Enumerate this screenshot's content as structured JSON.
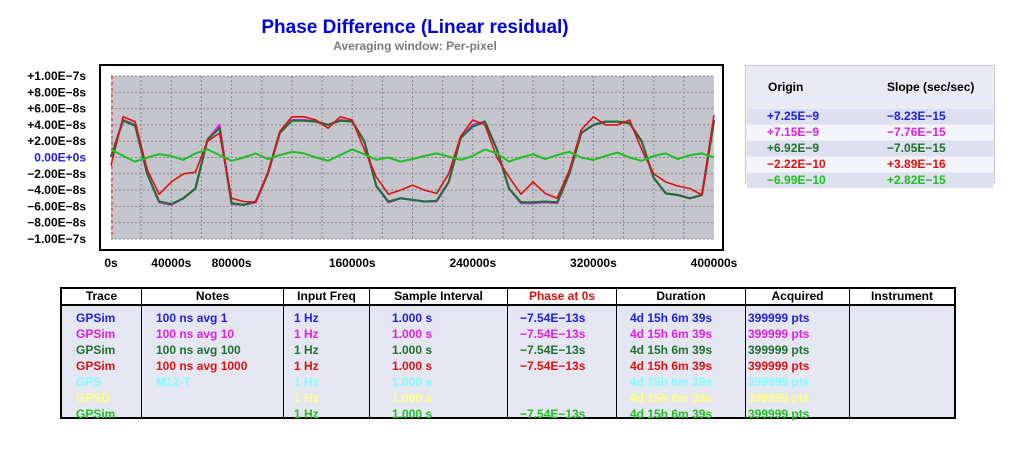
{
  "header": {
    "title": "Phase Difference (Linear residual)",
    "subtitle": "Averaging window: Per-pixel"
  },
  "chart_data": {
    "type": "line",
    "title": "Phase Difference (Linear residual)",
    "subtitle": "Averaging window: Per-pixel",
    "ylim": [
      -1e-07,
      1e-07
    ],
    "xlim": [
      0,
      400000
    ],
    "y_ticks": [
      "+1.00E−7s",
      "+8.00E−8s",
      "+6.00E−8s",
      "+4.00E−8s",
      "+2.00E−8s",
      "0.00E+0s",
      "−2.00E−8s",
      "−4.00E−8s",
      "−6.00E−8s",
      "−8.00E−8s",
      "−1.00E−7s"
    ],
    "x_ticks": [
      {
        "v": 0,
        "label": "0s"
      },
      {
        "v": 40000,
        "label": "40000s"
      },
      {
        "v": 80000,
        "label": "80000s"
      },
      {
        "v": 160000,
        "label": "160000s"
      },
      {
        "v": 240000,
        "label": "240000s"
      },
      {
        "v": 320000,
        "label": "320000s"
      },
      {
        "v": 400000,
        "label": "400000s"
      }
    ],
    "grid": true,
    "x": [
      0,
      8000,
      16000,
      24000,
      32000,
      40000,
      48000,
      56000,
      64000,
      72000,
      80000,
      88000,
      96000,
      104000,
      112000,
      120000,
      128000,
      136000,
      144000,
      152000,
      160000,
      168000,
      176000,
      184000,
      192000,
      200000,
      208000,
      216000,
      224000,
      232000,
      240000,
      248000,
      256000,
      264000,
      272000,
      280000,
      288000,
      296000,
      304000,
      312000,
      320000,
      328000,
      336000,
      344000,
      352000,
      360000,
      368000,
      376000,
      384000,
      392000,
      400000
    ],
    "series": [
      {
        "name": "GPSim 100 ns avg 1",
        "color": "#2020e0",
        "values": [
          1e-09,
          4.6e-08,
          4e-08,
          -2e-08,
          -5.5e-08,
          -5.8e-08,
          -5e-08,
          -3.8e-08,
          2.2e-08,
          3.8e-08,
          -5.7e-08,
          -5.8e-08,
          -5.5e-08,
          -2e-08,
          3e-08,
          4.6e-08,
          4.6e-08,
          4.4e-08,
          4e-08,
          4.6e-08,
          4.4e-08,
          2e-08,
          -3.5e-08,
          -5.5e-08,
          -5e-08,
          -5.2e-08,
          -5.4e-08,
          -5.4e-08,
          -3e-08,
          2.4e-08,
          3.8e-08,
          4.4e-08,
          1e-08,
          -3.8e-08,
          -5.6e-08,
          -5.6e-08,
          -5.5e-08,
          -5.6e-08,
          -2e-08,
          3e-08,
          4e-08,
          4.4e-08,
          4.4e-08,
          4.2e-08,
          2e-08,
          -2.5e-08,
          -4.4e-08,
          -4.6e-08,
          -5e-08,
          -4.6e-08,
          4.6e-08
        ]
      },
      {
        "name": "GPSim 100 ns avg 10",
        "color": "#e020e0",
        "values": [
          1e-09,
          4.6e-08,
          4e-08,
          -2e-08,
          -5.5e-08,
          -5.8e-08,
          -5e-08,
          -3.8e-08,
          2.2e-08,
          4e-08,
          -5.7e-08,
          -5.8e-08,
          -5.5e-08,
          -2e-08,
          3e-08,
          4.6e-08,
          4.6e-08,
          4.4e-08,
          4e-08,
          4.6e-08,
          4.4e-08,
          2e-08,
          -3.5e-08,
          -5.5e-08,
          -5e-08,
          -5.2e-08,
          -5.4e-08,
          -5.4e-08,
          -3e-08,
          2.4e-08,
          4e-08,
          4.4e-08,
          1e-08,
          -3.8e-08,
          -5.6e-08,
          -5.6e-08,
          -5.5e-08,
          -5.6e-08,
          -2e-08,
          3e-08,
          4e-08,
          4.4e-08,
          4.4e-08,
          4.2e-08,
          2e-08,
          -2.5e-08,
          -4.4e-08,
          -4.6e-08,
          -5e-08,
          -4.6e-08,
          4.6e-08
        ]
      },
      {
        "name": "GPSim 100 ns avg 100",
        "color": "#207030",
        "values": [
          1e-09,
          4.5e-08,
          3.9e-08,
          -2e-08,
          -5.4e-08,
          -5.7e-08,
          -5e-08,
          -3.8e-08,
          2.2e-08,
          3.6e-08,
          -5.6e-08,
          -5.8e-08,
          -5.4e-08,
          -2e-08,
          3e-08,
          4.5e-08,
          4.5e-08,
          4.4e-08,
          4e-08,
          4.5e-08,
          4.4e-08,
          2e-08,
          -3.5e-08,
          -5.4e-08,
          -5e-08,
          -5.2e-08,
          -5.4e-08,
          -5.3e-08,
          -3e-08,
          2.4e-08,
          3.8e-08,
          4.4e-08,
          1e-08,
          -3.8e-08,
          -5.5e-08,
          -5.5e-08,
          -5.4e-08,
          -5.5e-08,
          -2e-08,
          3e-08,
          4e-08,
          4.4e-08,
          4.4e-08,
          4.2e-08,
          2e-08,
          -2.5e-08,
          -4.4e-08,
          -4.6e-08,
          -5e-08,
          -4.6e-08,
          4.4e-08
        ]
      },
      {
        "name": "GPSim 100 ns avg 1000",
        "color": "#e01010",
        "values": [
          -1e-08,
          5e-08,
          4.4e-08,
          -1.5e-08,
          -4.5e-08,
          -3e-08,
          -2e-08,
          -1.8e-08,
          2e-08,
          3e-08,
          -5e-08,
          -5.4e-08,
          -5.5e-08,
          -1.8e-08,
          3.2e-08,
          5e-08,
          5e-08,
          4.6e-08,
          3.6e-08,
          5e-08,
          4.6e-08,
          1e-08,
          -2.4e-08,
          -4.5e-08,
          -4e-08,
          -3.4e-08,
          -4e-08,
          -4.4e-08,
          -2e-08,
          2.6e-08,
          4.6e-08,
          4e-08,
          0,
          -2.4e-08,
          -4.5e-08,
          -3e-08,
          -4.4e-08,
          -5e-08,
          -1.6e-08,
          3.4e-08,
          5e-08,
          4e-08,
          4e-08,
          4.6e-08,
          1e-08,
          -2e-08,
          -3e-08,
          -3.5e-08,
          -3.8e-08,
          -4.6e-08,
          5.2e-08
        ]
      },
      {
        "name": "GPSim",
        "color": "#20c020",
        "values": [
          1e-08,
          2e-09,
          -5e-09,
          0,
          4e-09,
          2e-09,
          -3e-09,
          5e-09,
          1e-08,
          3e-09,
          -4e-09,
          0,
          5e-09,
          -2e-09,
          3e-09,
          7e-09,
          5e-09,
          0,
          -4e-09,
          3e-09,
          1e-08,
          4e-09,
          -3e-09,
          0,
          -5e-09,
          -2e-09,
          2e-09,
          5e-09,
          1e-09,
          -3e-09,
          2e-09,
          1e-08,
          5e-09,
          -5e-09,
          0,
          4e-09,
          -2e-09,
          3e-09,
          7e-09,
          0,
          -3e-09,
          2e-09,
          6e-09,
          0,
          -4e-09,
          2e-09,
          5e-09,
          -2e-09,
          3e-09,
          5e-09,
          0
        ]
      }
    ]
  },
  "legend": {
    "headers": [
      "Origin",
      "Slope (sec/sec)"
    ],
    "rows": [
      {
        "origin": "+7.25E−9",
        "slope": "−8.23E−15",
        "color": "#2020e0"
      },
      {
        "origin": "+7.15E−9",
        "slope": "−7.76E−15",
        "color": "#e020e0"
      },
      {
        "origin": "+6.92E−9",
        "slope": "−7.05E−15",
        "color": "#207030"
      },
      {
        "origin": "−2.22E−10",
        "slope": "+3.89E−16",
        "color": "#e01010"
      },
      {
        "origin": "−6.99E−10",
        "slope": "+2.82E−15",
        "color": "#20c020"
      }
    ]
  },
  "table": {
    "headers": [
      "Trace",
      "Notes",
      "Input Freq",
      "Sample Interval",
      "Phase at 0s",
      "Duration",
      "Acquired",
      "Instrument"
    ],
    "header_colors": [
      "#000000",
      "#000000",
      "#000000",
      "#000000",
      "#e01010",
      "#000000",
      "#000000",
      "#000000"
    ],
    "rows": [
      {
        "color": "#2020e0",
        "cells": [
          "GPSim",
          "100 ns avg 1",
          "1 Hz",
          "1.000 s",
          "−7.54E−13s",
          "4d 15h 6m 39s",
          "399999 pts",
          ""
        ]
      },
      {
        "color": "#e020e0",
        "cells": [
          "GPSim",
          "100 ns avg 10",
          "1 Hz",
          "1.000 s",
          "−7.54E−13s",
          "4d 15h 6m 39s",
          "399999 pts",
          ""
        ]
      },
      {
        "color": "#207030",
        "cells": [
          "GPSim",
          "100 ns avg 100",
          "1 Hz",
          "1.000 s",
          "−7.54E−13s",
          "4d 15h 6m 39s",
          "399999 pts",
          ""
        ]
      },
      {
        "color": "#e01010",
        "cells": [
          "GPSim",
          "100 ns avg 1000",
          "1 Hz",
          "1.000 s",
          "−7.54E−13s",
          "4d 15h 6m 39s",
          "399999 pts",
          ""
        ]
      },
      {
        "color": "#80ffff",
        "cells": [
          "GPS",
          "M12-T",
          "1 Hz",
          "1.000 s",
          "",
          "4d 15h 6m 39s",
          "399999 pts",
          ""
        ]
      },
      {
        "color": "#ffff80",
        "cells": [
          "GPSD",
          "",
          "1 Hz",
          "1.000 s",
          "",
          "4d 15h 6m 39s",
          "399999 pts",
          ""
        ]
      },
      {
        "color": "#20c020",
        "cells": [
          "GPSim",
          "",
          "1 Hz",
          "1.000 s",
          "−7.54E−13s",
          "4d 15h 6m 39s",
          "399999 pts",
          ""
        ]
      }
    ]
  }
}
